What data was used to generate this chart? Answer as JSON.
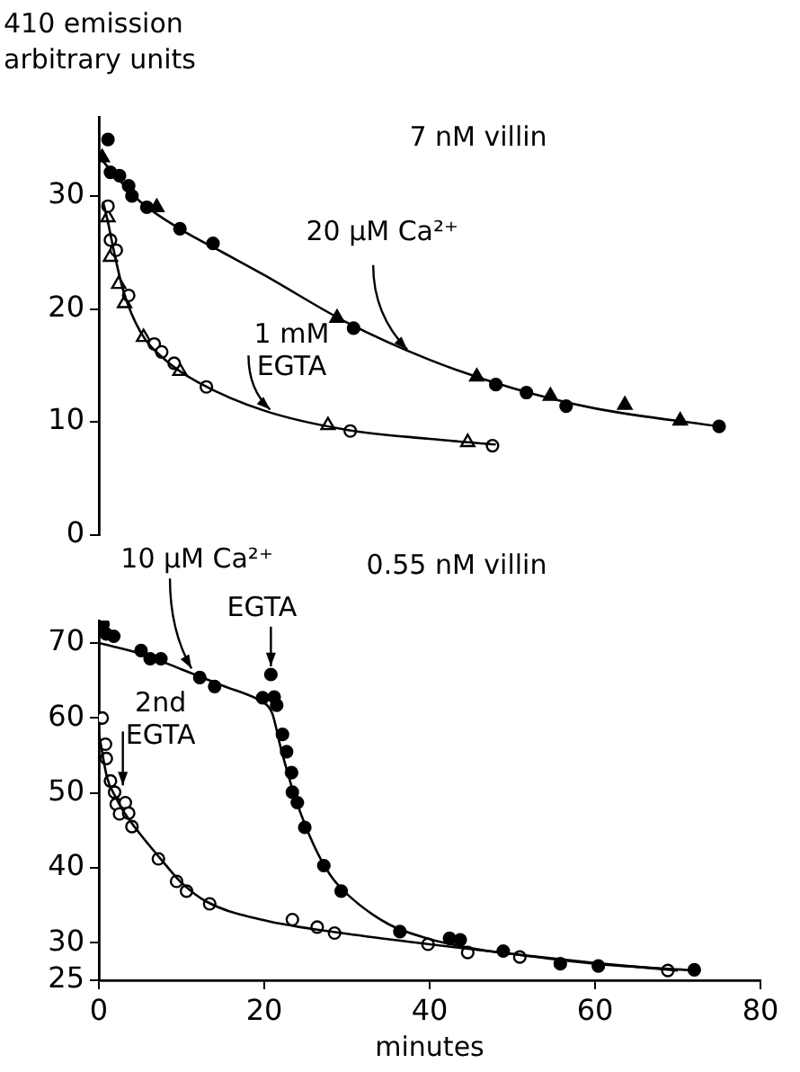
{
  "chart_data": [
    {
      "type": "scatter",
      "ylabel": "410 emission arbitrary units",
      "xlim": [
        0,
        80
      ],
      "xticks": [
        0,
        20,
        40,
        60,
        80
      ],
      "ylim": [
        0,
        37
      ],
      "yticks": [
        0,
        10,
        20,
        30
      ],
      "tick_labels": "y",
      "grid": false,
      "legend": false,
      "annotations": [
        "7 nM villin",
        {
          "text": "20 µM Ca²⁺",
          "x": 37.3,
          "y": 16.4
        },
        {
          "text": "1 mM EGTA",
          "x": 20.7,
          "y": 11.1
        }
      ],
      "series": [
        {
          "type": "scatter",
          "marker": "circle",
          "color": "#000000",
          "x": [
            1.1,
            1.4,
            2.5,
            3.6,
            4.0,
            5.8,
            9.8,
            13.8,
            30.8,
            48.0,
            51.7,
            56.5,
            75.0
          ],
          "values": [
            35.0,
            32.1,
            31.8,
            30.9,
            30.0,
            29.0,
            27.1,
            25.8,
            18.3,
            13.3,
            12.6,
            11.4,
            9.6
          ]
        },
        {
          "type": "scatter",
          "marker": "triangle",
          "color": "#000000",
          "x": [
            0.4,
            7.0,
            28.8,
            45.7,
            54.6,
            63.6,
            70.3
          ],
          "values": [
            33.4,
            29.0,
            19.2,
            14.0,
            12.3,
            11.5,
            10.1
          ]
        },
        {
          "type": "scatter",
          "marker": "circle",
          "color": "#ffffff",
          "x": [
            1.1,
            1.4,
            2.1,
            3.6,
            6.7,
            7.6,
            9.1,
            13.0,
            30.4,
            47.6
          ],
          "values": [
            29.1,
            26.1,
            25.2,
            21.2,
            16.9,
            16.2,
            15.2,
            13.1,
            9.2,
            7.9
          ]
        },
        {
          "type": "scatter",
          "marker": "triangle",
          "color": "#ffffff",
          "x": [
            1.1,
            1.4,
            2.4,
            3.1,
            5.4,
            9.8,
            27.7,
            44.6
          ],
          "values": [
            28.1,
            24.6,
            22.2,
            20.5,
            17.5,
            14.5,
            9.7,
            8.2
          ]
        },
        {
          "type": "line",
          "marker": "none",
          "color": "#000000",
          "x": [
            0,
            2,
            5,
            10,
            15,
            20,
            30,
            40,
            50,
            60,
            75
          ],
          "values": [
            33.5,
            31.8,
            29.5,
            27,
            25,
            23,
            18.8,
            15.5,
            13,
            11.2,
            9.6
          ]
        },
        {
          "type": "line",
          "marker": "none",
          "color": "#000000",
          "x": [
            0.5,
            1,
            2,
            3,
            5,
            8,
            12,
            20,
            30,
            40,
            48
          ],
          "values": [
            29.5,
            28,
            24.5,
            21.5,
            18,
            15.5,
            13.5,
            11,
            9.3,
            8.5,
            8.0
          ]
        }
      ]
    },
    {
      "type": "scatter",
      "xlabel": "minutes",
      "xlim": [
        0,
        80
      ],
      "xticks": [
        0,
        20,
        40,
        60,
        80
      ],
      "ylim": [
        25,
        73
      ],
      "yticks": [
        25,
        30,
        40,
        50,
        60,
        70
      ],
      "grid": false,
      "legend": false,
      "annotations": [
        {
          "text": "10 µM Ca²⁺",
          "x": 11.2,
          "y": 66.6
        },
        "0.55 nM villin",
        {
          "text": "EGTA",
          "x": 20.8,
          "y": 66.9
        },
        {
          "text": "2nd EGTA",
          "x": 2.9,
          "y": 51.0
        }
      ],
      "series": [
        {
          "type": "scatter",
          "marker": "circle",
          "color": "#000000",
          "x": [
            0.5,
            0.9,
            1.8,
            5.1,
            6.2,
            7.5,
            12.2,
            14.0,
            19.8,
            20.8,
            21.2,
            21.5,
            22.2,
            22.7,
            23.3,
            23.4,
            24.0,
            24.9,
            27.2,
            29.3,
            36.4,
            42.4,
            43.7,
            48.9,
            55.8,
            60.4,
            72.0
          ],
          "values": [
            72.5,
            71.2,
            70.9,
            69.0,
            67.9,
            67.9,
            65.4,
            64.2,
            62.7,
            65.8,
            62.8,
            61.7,
            57.8,
            55.5,
            52.7,
            50.1,
            48.7,
            45.4,
            40.3,
            36.9,
            31.5,
            30.6,
            30.4,
            28.9,
            27.2,
            26.9,
            26.4
          ]
        },
        {
          "type": "scatter",
          "marker": "circle",
          "color": "#ffffff",
          "x": [
            0.4,
            0.8,
            0.9,
            1.4,
            1.9,
            2.1,
            2.5,
            3.2,
            3.6,
            4.0,
            7.2,
            9.4,
            10.6,
            13.4,
            23.4,
            26.4,
            28.5,
            39.8,
            44.6,
            50.9,
            68.8
          ],
          "values": [
            60.0,
            56.5,
            54.6,
            51.6,
            50.1,
            48.5,
            47.2,
            48.7,
            47.3,
            45.5,
            41.2,
            38.2,
            36.9,
            35.2,
            33.1,
            32.1,
            31.3,
            29.8,
            28.7,
            28.1,
            26.3
          ]
        },
        {
          "type": "line",
          "marker": "none",
          "color": "#000000",
          "x": [
            0,
            5,
            10,
            15,
            20,
            20.5,
            21,
            22,
            23,
            24,
            26,
            28,
            30,
            35,
            40,
            45,
            50,
            60,
            72
          ],
          "values": [
            70,
            68.6,
            66.5,
            64.3,
            62,
            61.5,
            60.5,
            56,
            52,
            48.5,
            43,
            39,
            36.5,
            32.5,
            30.5,
            29.3,
            28.5,
            27.2,
            26.3
          ]
        },
        {
          "type": "line",
          "marker": "none",
          "color": "#000000",
          "x": [
            0,
            1,
            2,
            3,
            5,
            8,
            10,
            13,
            20,
            30,
            40,
            50,
            60,
            70
          ],
          "values": [
            58,
            52,
            49.5,
            47.5,
            44.5,
            40.5,
            38,
            35.5,
            33,
            31.2,
            29.8,
            28.5,
            27.3,
            26.3
          ]
        }
      ]
    }
  ]
}
